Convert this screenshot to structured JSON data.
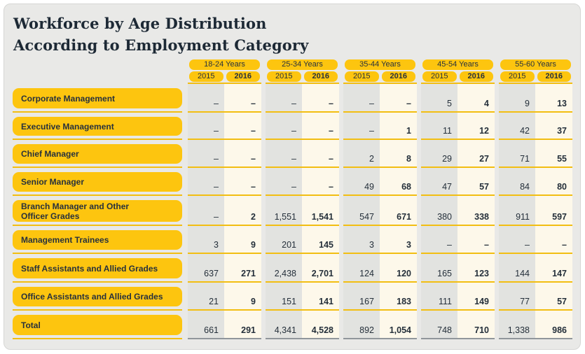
{
  "title": {
    "line1": "Workforce by Age Distribution",
    "line2": "According to Employment Category"
  },
  "colors": {
    "pill_yellow": "#fdc50f",
    "line_yellow": "#f2be12",
    "card_bg": "#e9e9e7",
    "col_2015_bg": "#e2e3e0",
    "col_2016_bg": "#fdf8ea",
    "text_dark": "#27313c",
    "total_line_gray": "#90969b"
  },
  "table": {
    "age_groups": [
      {
        "label": "18-24 Years",
        "years": [
          "2015",
          "2016"
        ]
      },
      {
        "label": "25-34 Years",
        "years": [
          "2015",
          "2016"
        ]
      },
      {
        "label": "35-44 Years",
        "years": [
          "2015",
          "2016"
        ]
      },
      {
        "label": "45-54 Years",
        "years": [
          "2015",
          "2016"
        ]
      },
      {
        "label": "55-60 Years",
        "years": [
          "2015",
          "2016"
        ]
      }
    ],
    "rows": [
      {
        "category_lines": [
          "Corporate Management"
        ],
        "values": [
          "–",
          "–",
          "–",
          "–",
          "–",
          "–",
          "5",
          "4",
          "9",
          "13"
        ]
      },
      {
        "category_lines": [
          "Executive Management"
        ],
        "values": [
          "–",
          "–",
          "–",
          "–",
          "–",
          "1",
          "11",
          "12",
          "42",
          "37"
        ]
      },
      {
        "category_lines": [
          "Chief Manager"
        ],
        "values": [
          "–",
          "–",
          "–",
          "–",
          "2",
          "8",
          "29",
          "27",
          "71",
          "55"
        ]
      },
      {
        "category_lines": [
          "Senior Manager"
        ],
        "values": [
          "–",
          "–",
          "–",
          "–",
          "49",
          "68",
          "47",
          "57",
          "84",
          "80"
        ]
      },
      {
        "category_lines": [
          "Branch Manager and Other",
          "Officer Grades"
        ],
        "values": [
          "–",
          "2",
          "1,551",
          "1,541",
          "547",
          "671",
          "380",
          "338",
          "911",
          "597"
        ]
      },
      {
        "category_lines": [
          "Management Trainees"
        ],
        "values": [
          "3",
          "9",
          "201",
          "145",
          "3",
          "3",
          "–",
          "–",
          "–",
          "–"
        ]
      },
      {
        "category_lines": [
          "Staff Assistants and Allied Grades"
        ],
        "values": [
          "637",
          "271",
          "2,438",
          "2,701",
          "124",
          "120",
          "165",
          "123",
          "144",
          "147"
        ]
      },
      {
        "category_lines": [
          "Office Assistants and Allied Grades"
        ],
        "values": [
          "21",
          "9",
          "151",
          "141",
          "167",
          "183",
          "111",
          "149",
          "77",
          "57"
        ]
      },
      {
        "category_lines": [
          "Total"
        ],
        "values": [
          "661",
          "291",
          "4,341",
          "4,528",
          "892",
          "1,054",
          "748",
          "710",
          "1,338",
          "986"
        ],
        "is_total": true
      }
    ]
  },
  "chart_data": {
    "type": "table",
    "title": "Workforce by Age Distribution According to Employment Category",
    "column_groups": [
      "18-24 Years",
      "25-34 Years",
      "35-44 Years",
      "45-54 Years",
      "55-60 Years"
    ],
    "sub_columns": [
      "2015",
      "2016"
    ],
    "row_labels": [
      "Corporate Management",
      "Executive Management",
      "Chief Manager",
      "Senior Manager",
      "Branch Manager and Other Officer Grades",
      "Management Trainees",
      "Staff Assistants and Allied Grades",
      "Office Assistants and Allied Grades",
      "Total"
    ],
    "values": [
      [
        null,
        null,
        null,
        null,
        null,
        null,
        5,
        4,
        9,
        13
      ],
      [
        null,
        null,
        null,
        null,
        null,
        1,
        11,
        12,
        42,
        37
      ],
      [
        null,
        null,
        null,
        null,
        2,
        8,
        29,
        27,
        71,
        55
      ],
      [
        null,
        null,
        null,
        null,
        49,
        68,
        47,
        57,
        84,
        80
      ],
      [
        null,
        2,
        1551,
        1541,
        547,
        671,
        380,
        338,
        911,
        597
      ],
      [
        3,
        9,
        201,
        145,
        3,
        3,
        null,
        null,
        null,
        null
      ],
      [
        637,
        271,
        2438,
        2701,
        124,
        120,
        165,
        123,
        144,
        147
      ],
      [
        21,
        9,
        151,
        141,
        167,
        183,
        111,
        149,
        77,
        57
      ],
      [
        661,
        291,
        4341,
        4528,
        892,
        1054,
        748,
        710,
        1338,
        986
      ]
    ],
    "null_display": "–"
  }
}
